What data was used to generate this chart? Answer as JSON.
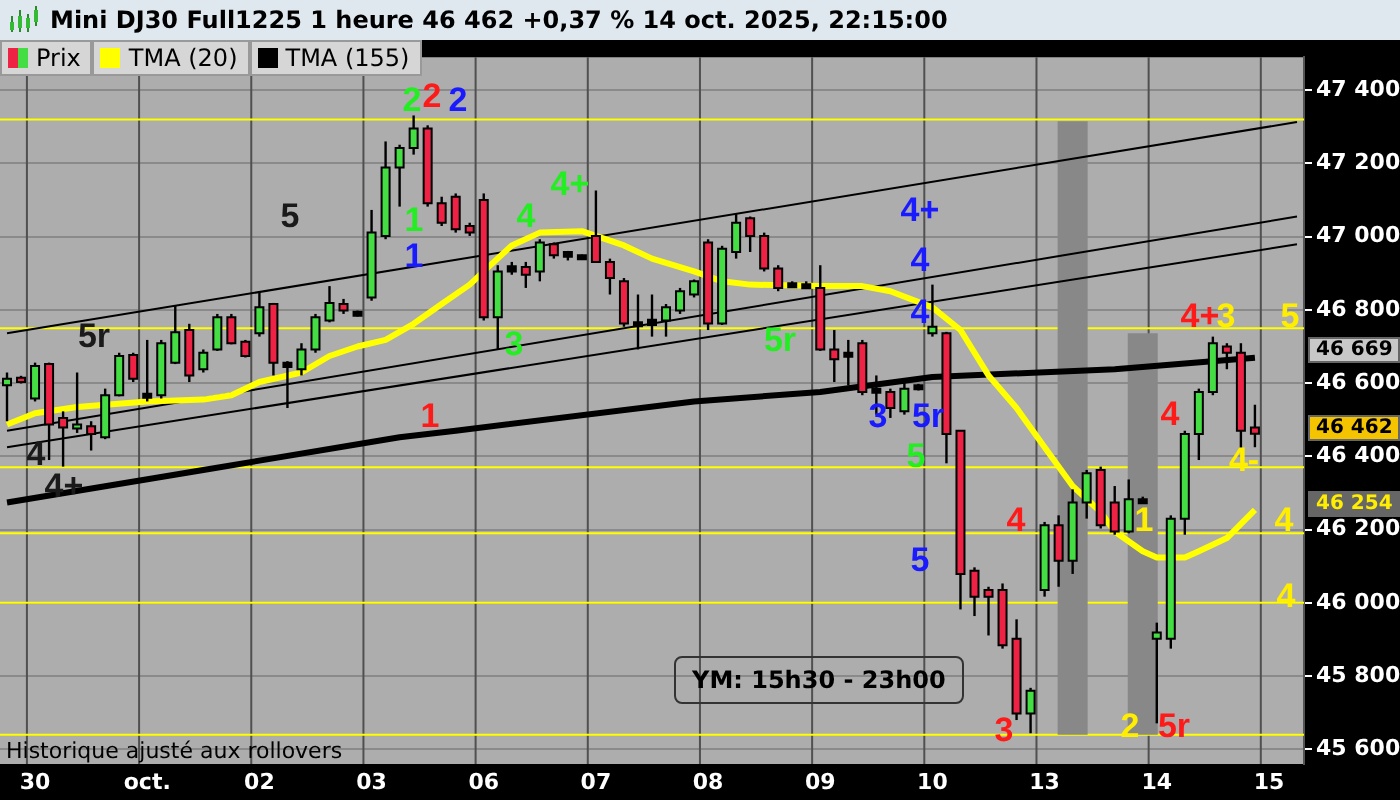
{
  "chart_data": {
    "type": "candlestick",
    "title": "Mini DJ30 Full1225 1 heure 46 462 +0,37 % 14 oct. 2025, 22:15:00",
    "categories": [
      null,
      null,
      "30",
      null,
      null,
      null,
      null,
      null,
      null,
      null,
      "oct.",
      null,
      null,
      null,
      null,
      null,
      null,
      null,
      "02",
      null,
      null,
      null,
      null,
      null,
      null,
      null,
      "03",
      null,
      null,
      null,
      null,
      null,
      null,
      null,
      "06",
      null,
      null,
      null,
      null,
      null,
      null,
      null,
      "07",
      null,
      null,
      null,
      null,
      null,
      null,
      null,
      "08",
      null,
      null,
      null,
      null,
      null,
      null,
      null,
      "09",
      null,
      null,
      null,
      null,
      null,
      null,
      null,
      "10",
      null,
      null,
      null,
      null,
      null,
      null,
      null,
      "13",
      null,
      null,
      null,
      null,
      null,
      null,
      null,
      "14",
      null,
      null,
      null,
      null,
      null,
      null,
      null,
      "15",
      null,
      null
    ],
    "ylim": [
      45560,
      47490
    ],
    "yticks": [
      {
        "value": 45600,
        "label": "45 600"
      },
      {
        "value": 45800,
        "label": "45 800"
      },
      {
        "value": 46000,
        "label": "46 000"
      },
      {
        "value": 46200,
        "label": "46 200"
      },
      {
        "value": 46400,
        "label": "46 400"
      },
      {
        "value": 46600,
        "label": "46 600"
      },
      {
        "value": 46800,
        "label": "46 800"
      },
      {
        "value": 47000,
        "label": "47 000"
      },
      {
        "value": 47200,
        "label": "47 200"
      },
      {
        "value": 47400,
        "label": "47 400"
      }
    ],
    "grid": true,
    "legend": "top left",
    "marker": "none",
    "ref_lines": [
      {
        "axis": "y",
        "value": 47320,
        "color": "#ffff00"
      },
      {
        "axis": "y",
        "value": 46750,
        "color": "#ffff00"
      },
      {
        "axis": "y",
        "value": 46370,
        "color": "#ffff00"
      },
      {
        "axis": "y",
        "value": 46190,
        "color": "#ffff00"
      },
      {
        "axis": "y",
        "value": 46000,
        "color": "#ffff00"
      },
      {
        "axis": "y",
        "value": 45640,
        "color": "#ffff00"
      }
    ],
    "annotations": [
      "Historique ajusté aux rollovers",
      "YM: 15h30 - 23h00",
      "46 669",
      "46 462",
      "46 254",
      "2",
      "1",
      "4",
      "3",
      "4+",
      "5r",
      "5",
      "2",
      "1",
      "4",
      "3",
      "4",
      "4+",
      "5r",
      "2",
      "1",
      "4+",
      "4",
      "4",
      "3",
      "5r",
      "5",
      "5",
      "5r",
      "4",
      "4+",
      "3",
      "5",
      "4-",
      "4",
      "4",
      "2",
      "1"
    ],
    "series": [
      {
        "name": "Prix",
        "ohlc": [
          [
            46594,
            46629,
            46496,
            46612
          ],
          [
            46615,
            46620,
            46599,
            46603
          ],
          [
            46558,
            46656,
            46550,
            46647
          ],
          [
            46652,
            46656,
            46390,
            46487
          ],
          [
            46505,
            46523,
            46372,
            46479
          ],
          [
            46479,
            46629,
            46464,
            46487
          ],
          [
            46482,
            46496,
            46416,
            46461
          ],
          [
            46452,
            46585,
            46447,
            46567
          ],
          [
            46567,
            46683,
            46564,
            46674
          ],
          [
            46677,
            46683,
            46603,
            46612
          ],
          [
            46564,
            46718,
            46550,
            46571
          ],
          [
            46567,
            46718,
            46558,
            46709
          ],
          [
            46656,
            46812,
            46652,
            46739
          ],
          [
            46745,
            46762,
            46603,
            46621
          ],
          [
            46638,
            46692,
            46629,
            46683
          ],
          [
            46692,
            46789,
            46688,
            46780
          ],
          [
            46780,
            46789,
            46706,
            46709
          ],
          [
            46713,
            46718,
            46670,
            46674
          ],
          [
            46736,
            46851,
            46727,
            46807
          ],
          [
            46816,
            46819,
            46621,
            46656
          ],
          [
            46656,
            46660,
            46532,
            46644
          ],
          [
            46638,
            46709,
            46621,
            46692
          ],
          [
            46692,
            46789,
            46683,
            46780
          ],
          [
            46771,
            46865,
            46766,
            46819
          ],
          [
            46816,
            46830,
            46789,
            46798
          ],
          [
            46795,
            46798,
            46782,
            46786
          ],
          [
            46834,
            47073,
            46825,
            47011
          ],
          [
            47002,
            47260,
            46993,
            47189
          ],
          [
            47189,
            47251,
            47082,
            47242
          ],
          [
            47242,
            47331,
            47224,
            47295
          ],
          [
            47295,
            47304,
            47082,
            47091
          ],
          [
            47091,
            47109,
            47029,
            47038
          ],
          [
            47109,
            47118,
            47011,
            47020
          ],
          [
            47029,
            47038,
            47002,
            47011
          ],
          [
            47100,
            47118,
            46771,
            46780
          ],
          [
            46780,
            46922,
            46692,
            46905
          ],
          [
            46905,
            46931,
            46896,
            46919
          ],
          [
            46917,
            46931,
            46860,
            46896
          ],
          [
            46905,
            46993,
            46878,
            46984
          ],
          [
            46979,
            46984,
            46940,
            46949
          ],
          [
            46958,
            46961,
            46935,
            46945
          ],
          [
            46949,
            46951,
            46938,
            46942
          ],
          [
            47002,
            47126,
            46929,
            46931
          ],
          [
            46931,
            46940,
            46842,
            46887
          ],
          [
            46878,
            46887,
            46754,
            46763
          ],
          [
            46766,
            46842,
            46692,
            46759
          ],
          [
            46759,
            46842,
            46727,
            46773
          ],
          [
            46771,
            46816,
            46727,
            46807
          ],
          [
            46798,
            46860,
            46789,
            46851
          ],
          [
            46842,
            46883,
            46834,
            46878
          ],
          [
            46984,
            46993,
            46745,
            46763
          ],
          [
            46763,
            46975,
            46759,
            46967
          ],
          [
            46958,
            47064,
            46940,
            47038
          ],
          [
            47050,
            47055,
            46958,
            47002
          ],
          [
            47002,
            47011,
            46905,
            46913
          ],
          [
            46913,
            46922,
            46851,
            46860
          ],
          [
            46873,
            46878,
            46860,
            46864
          ],
          [
            46864,
            46878,
            46860,
            46870
          ],
          [
            46860,
            46922,
            46688,
            46692
          ],
          [
            46692,
            46745,
            46603,
            46665
          ],
          [
            46683,
            46718,
            46594,
            46674
          ],
          [
            46709,
            46718,
            46567,
            46576
          ],
          [
            46576,
            46621,
            46514,
            46585
          ],
          [
            46576,
            46585,
            46505,
            46532
          ],
          [
            46523,
            46612,
            46514,
            46585
          ],
          [
            46585,
            46598,
            46580,
            46594
          ],
          [
            46736,
            46869,
            46727,
            46754
          ],
          [
            46736,
            46740,
            46381,
            46461
          ],
          [
            46470,
            46470,
            45982,
            46079
          ],
          [
            46088,
            46097,
            45964,
            46017
          ],
          [
            46035,
            46044,
            45911,
            46017
          ],
          [
            46035,
            46053,
            45875,
            45884
          ],
          [
            45902,
            45955,
            45680,
            45698
          ],
          [
            45698,
            45768,
            45644,
            45760
          ],
          [
            46035,
            46221,
            46017,
            46212
          ],
          [
            46212,
            46239,
            46044,
            46115
          ],
          [
            46115,
            46310,
            46079,
            46274
          ],
          [
            46274,
            46363,
            46230,
            46354
          ],
          [
            46363,
            46372,
            46203,
            46212
          ],
          [
            46274,
            46319,
            46186,
            46195
          ],
          [
            46195,
            46337,
            46190,
            46283
          ],
          [
            46283,
            46290,
            46270,
            46274
          ],
          [
            45902,
            45946,
            45671,
            45919
          ],
          [
            45902,
            46239,
            45875,
            46230
          ],
          [
            46230,
            46470,
            46186,
            46461
          ],
          [
            46461,
            46585,
            46390,
            46576
          ],
          [
            46576,
            46727,
            46567,
            46709
          ],
          [
            46700,
            46709,
            46638,
            46683
          ],
          [
            46683,
            46709,
            46416,
            46470
          ],
          [
            46479,
            46541,
            46425,
            46462
          ],
          null,
          null,
          null
        ],
        "colors": [
          "#44dd44",
          "#ee2244",
          "#44dd44",
          "#ee2244",
          "#ee2244",
          "#44dd44",
          "#ee2244",
          "#44dd44",
          "#44dd44",
          "#ee2244",
          "#000000",
          "#44dd44",
          "#44dd44",
          "#ee2244",
          "#44dd44",
          "#44dd44",
          "#ee2244",
          "#ee2244",
          "#44dd44",
          "#ee2244",
          "#000000",
          "#44dd44",
          "#44dd44",
          "#44dd44",
          "#ee2244",
          "#000000",
          "#44dd44",
          "#44dd44",
          "#44dd44",
          "#44dd44",
          "#ee2244",
          "#ee2244",
          "#ee2244",
          "#ee2244",
          "#ee2244",
          "#44dd44",
          "#000000",
          "#ee2244",
          "#44dd44",
          "#ee2244",
          "#000000",
          "#000000",
          "#ee2244",
          "#ee2244",
          "#ee2244",
          "#000000",
          "#000000",
          "#44dd44",
          "#44dd44",
          "#44dd44",
          "#ee2244",
          "#44dd44",
          "#44dd44",
          "#ee2244",
          "#ee2244",
          "#ee2244",
          "#000000",
          "#000000",
          "#ee2244",
          "#ee2244",
          "#000000",
          "#ee2244",
          "#000000",
          "#ee2244",
          "#44dd44",
          "#000000",
          "#44dd44",
          "#ee2244",
          "#ee2244",
          "#ee2244",
          "#ee2244",
          "#ee2244",
          "#ee2244",
          "#44dd44",
          "#44dd44",
          "#ee2244",
          "#44dd44",
          "#44dd44",
          "#ee2244",
          "#ee2244",
          "#44dd44",
          "#000000",
          "#44dd44",
          "#44dd44",
          "#44dd44",
          "#44dd44",
          "#44dd44",
          "#ee2244",
          "#ee2244",
          "#ee2244",
          null,
          null,
          null
        ]
      },
      {
        "type": "line",
        "name": "TMA (20)",
        "color": "#ffff00",
        "values": [
          46487,
          null,
          46518,
          null,
          null,
          46535,
          null,
          null,
          null,
          null,
          46550,
          null,
          null,
          null,
          46555,
          null,
          46567,
          null,
          46603,
          null,
          null,
          46629,
          null,
          46674,
          null,
          46700,
          null,
          46718,
          null,
          46762,
          null,
          46816,
          null,
          46869,
          46905,
          null,
          46976,
          null,
          47011,
          null,
          null,
          47015,
          47002,
          null,
          46976,
          null,
          46940,
          null,
          null,
          46905,
          null,
          46878,
          null,
          46869,
          null,
          null,
          null,
          null,
          46865,
          null,
          null,
          46865,
          null,
          46851,
          null,
          null,
          46807,
          null,
          46745,
          null,
          46621,
          null,
          46532,
          null,
          46425,
          null,
          46319,
          null,
          46248,
          46195,
          null,
          46141,
          46124,
          null,
          46124,
          46141,
          null,
          46177,
          null,
          46254,
          null,
          null,
          null
        ]
      },
      {
        "type": "line",
        "name": "TMA (155)",
        "color": "#000000",
        "values": [
          46274,
          null,
          null,
          null,
          null,
          null,
          null,
          null,
          null,
          null,
          null,
          null,
          null,
          null,
          46363,
          null,
          null,
          null,
          null,
          null,
          null,
          null,
          null,
          null,
          null,
          null,
          null,
          null,
          46452,
          null,
          null,
          null,
          46470,
          null,
          null,
          null,
          null,
          null,
          null,
          null,
          null,
          null,
          null,
          null,
          null,
          null,
          null,
          null,
          null,
          46550,
          null,
          null,
          null,
          null,
          null,
          null,
          null,
          null,
          46576,
          null,
          null,
          null,
          null,
          null,
          null,
          null,
          46617,
          null,
          null,
          null,
          null,
          null,
          null,
          null,
          null,
          null,
          null,
          null,
          null,
          46638,
          null,
          null,
          null,
          null,
          null,
          null,
          null,
          null,
          null,
          46669,
          null,
          null,
          null
        ]
      },
      {
        "type": "line",
        "color": "#000000",
        "values": [
          46736,
          null,
          null,
          null,
          null,
          null,
          null,
          null,
          null,
          null,
          null,
          null,
          null,
          null,
          null,
          null,
          null,
          null,
          null,
          null,
          null,
          null,
          null,
          null,
          null,
          null,
          null,
          null,
          null,
          null,
          null,
          null,
          null,
          null,
          null,
          null,
          null,
          null,
          null,
          null,
          null,
          null,
          null,
          null,
          null,
          null,
          null,
          null,
          null,
          null,
          null,
          null,
          null,
          null,
          null,
          null,
          null,
          null,
          null,
          null,
          null,
          null,
          null,
          null,
          null,
          null,
          null,
          null,
          null,
          null,
          null,
          null,
          null,
          null,
          null,
          null,
          null,
          null,
          null,
          null,
          null,
          null,
          null,
          null,
          null,
          null,
          null,
          null,
          null,
          null,
          null,
          null,
          47313
        ]
      },
      {
        "type": "line",
        "color": "#000000",
        "values": [
          46470,
          null,
          null,
          null,
          null,
          null,
          null,
          null,
          null,
          null,
          null,
          null,
          null,
          null,
          null,
          null,
          null,
          null,
          null,
          null,
          null,
          null,
          null,
          null,
          null,
          null,
          null,
          null,
          null,
          null,
          null,
          null,
          null,
          null,
          null,
          null,
          null,
          null,
          null,
          null,
          null,
          null,
          null,
          null,
          null,
          null,
          null,
          null,
          null,
          null,
          null,
          null,
          null,
          null,
          null,
          null,
          null,
          null,
          null,
          null,
          null,
          null,
          null,
          null,
          null,
          null,
          null,
          null,
          null,
          null,
          null,
          null,
          null,
          null,
          null,
          null,
          null,
          null,
          null,
          null,
          null,
          null,
          null,
          null,
          null,
          null,
          null,
          null,
          null,
          null,
          null,
          null,
          47055
        ]
      },
      {
        "type": "line",
        "color": "#000000",
        "values": [
          46425,
          null,
          null,
          null,
          null,
          null,
          null,
          null,
          null,
          null,
          null,
          null,
          null,
          null,
          null,
          null,
          null,
          null,
          null,
          null,
          null,
          null,
          null,
          null,
          null,
          null,
          null,
          null,
          null,
          null,
          null,
          null,
          null,
          null,
          null,
          null,
          null,
          null,
          null,
          null,
          null,
          null,
          null,
          null,
          null,
          null,
          null,
          null,
          null,
          null,
          null,
          null,
          null,
          null,
          null,
          null,
          null,
          null,
          null,
          null,
          null,
          null,
          null,
          null,
          null,
          null,
          null,
          null,
          null,
          null,
          null,
          null,
          null,
          null,
          null,
          null,
          null,
          null,
          null,
          null,
          null,
          null,
          null,
          null,
          null,
          null,
          null,
          null,
          null,
          null,
          null,
          null,
          46979
        ]
      },
      {
        "type": "bar",
        "color": "#888888",
        "base": [
          null,
          null,
          null,
          null,
          null,
          null,
          null,
          null,
          null,
          null,
          null,
          null,
          null,
          null,
          null,
          null,
          null,
          null,
          null,
          null,
          null,
          null,
          null,
          null,
          null,
          null,
          null,
          null,
          null,
          null,
          null,
          null,
          null,
          null,
          null,
          null,
          null,
          null,
          null,
          null,
          null,
          null,
          null,
          null,
          null,
          null,
          null,
          null,
          null,
          null,
          null,
          null,
          null,
          null,
          null,
          null,
          null,
          null,
          null,
          null,
          null,
          null,
          null,
          null,
          null,
          null,
          null,
          null,
          null,
          null,
          null,
          null,
          null,
          null,
          null,
          null,
          45640,
          null,
          null,
          null,
          null,
          45640,
          null,
          null,
          null,
          null,
          null,
          null,
          null,
          null,
          null,
          null,
          null
        ],
        "values": [
          null,
          null,
          null,
          null,
          null,
          null,
          null,
          null,
          null,
          null,
          null,
          null,
          null,
          null,
          null,
          null,
          null,
          null,
          null,
          null,
          null,
          null,
          null,
          null,
          null,
          null,
          null,
          null,
          null,
          null,
          null,
          null,
          null,
          null,
          null,
          null,
          null,
          null,
          null,
          null,
          null,
          null,
          null,
          null,
          null,
          null,
          null,
          null,
          null,
          null,
          null,
          null,
          null,
          null,
          null,
          null,
          null,
          null,
          null,
          null,
          null,
          null,
          null,
          null,
          null,
          null,
          null,
          null,
          null,
          null,
          null,
          null,
          null,
          null,
          null,
          null,
          1675,
          null,
          null,
          null,
          null,
          1096,
          null,
          null,
          null,
          null,
          null,
          null,
          null,
          null,
          null,
          null,
          null
        ]
      }
    ]
  }
}
